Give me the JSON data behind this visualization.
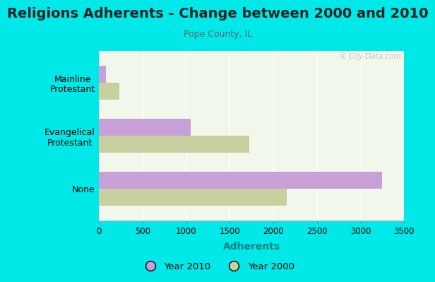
{
  "title": "Religions Adherents - Change between 2000 and 2010",
  "subtitle": "Pope County, IL",
  "xlabel": "Adherents",
  "categories": [
    "None",
    "Evangelical\nProtestant",
    "Mainline\nProtestant"
  ],
  "values_2010": [
    3250,
    1050,
    75
  ],
  "values_2000": [
    2150,
    1720,
    230
  ],
  "color_2010": "#c8a0d8",
  "color_2000": "#c8d0a0",
  "background_outer": "#00e8e8",
  "background_inner": "#f2f7ec",
  "xlim": [
    0,
    3500
  ],
  "xticks": [
    0,
    500,
    1000,
    1500,
    2000,
    2500,
    3000,
    3500
  ],
  "title_fontsize": 14,
  "subtitle_fontsize": 9,
  "xlabel_fontsize": 10,
  "legend_label_2010": "Year 2010",
  "legend_label_2000": "Year 2000",
  "watermark": "Ⓢ City-Data.com"
}
